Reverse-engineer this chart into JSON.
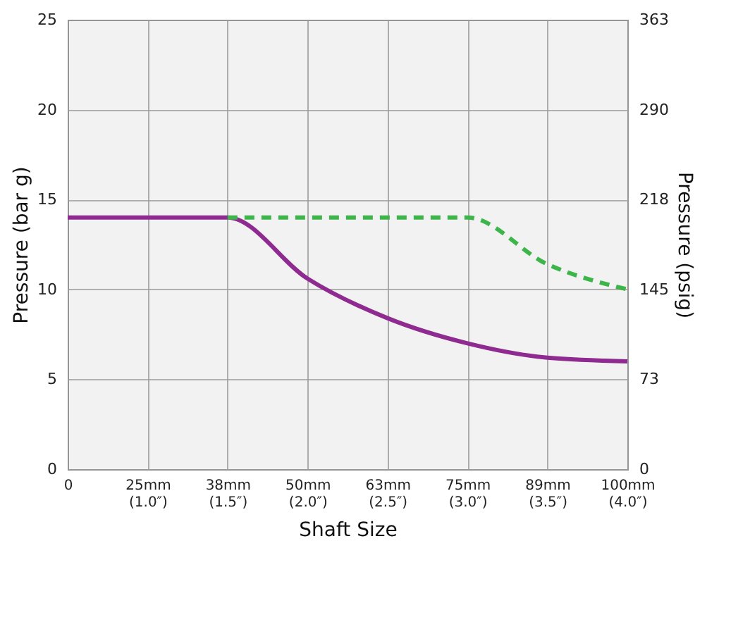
{
  "chart_data": {
    "type": "line",
    "xlabel": "Shaft Size",
    "ylabel": "Pressure (bar g)",
    "y2label": "Pressure (psig)",
    "categories": [
      "0",
      "25mm\n(1.0″)",
      "38mm\n(1.5″)",
      "50mm\n(2.0″)",
      "63mm\n(2.5″)",
      "75mm\n(3.0″)",
      "89mm\n(3.5″)",
      "100mm\n(4.0″)"
    ],
    "ylim": [
      0,
      25
    ],
    "yticks": [
      0,
      5,
      10,
      15,
      20,
      25
    ],
    "y2lim": [
      0,
      363
    ],
    "y2ticks": [
      0,
      73,
      145,
      218,
      290,
      363
    ],
    "grid": true,
    "series": [
      {
        "color": "#8e2a90",
        "line_style": "solid",
        "values": [
          14,
          14,
          14,
          10.6,
          8.4,
          7.0,
          6.2,
          6.0
        ]
      },
      {
        "color": "#3db54a",
        "line_style": "dashed",
        "values": [
          null,
          null,
          14,
          14,
          14,
          14,
          11.4,
          10.0
        ]
      }
    ]
  }
}
